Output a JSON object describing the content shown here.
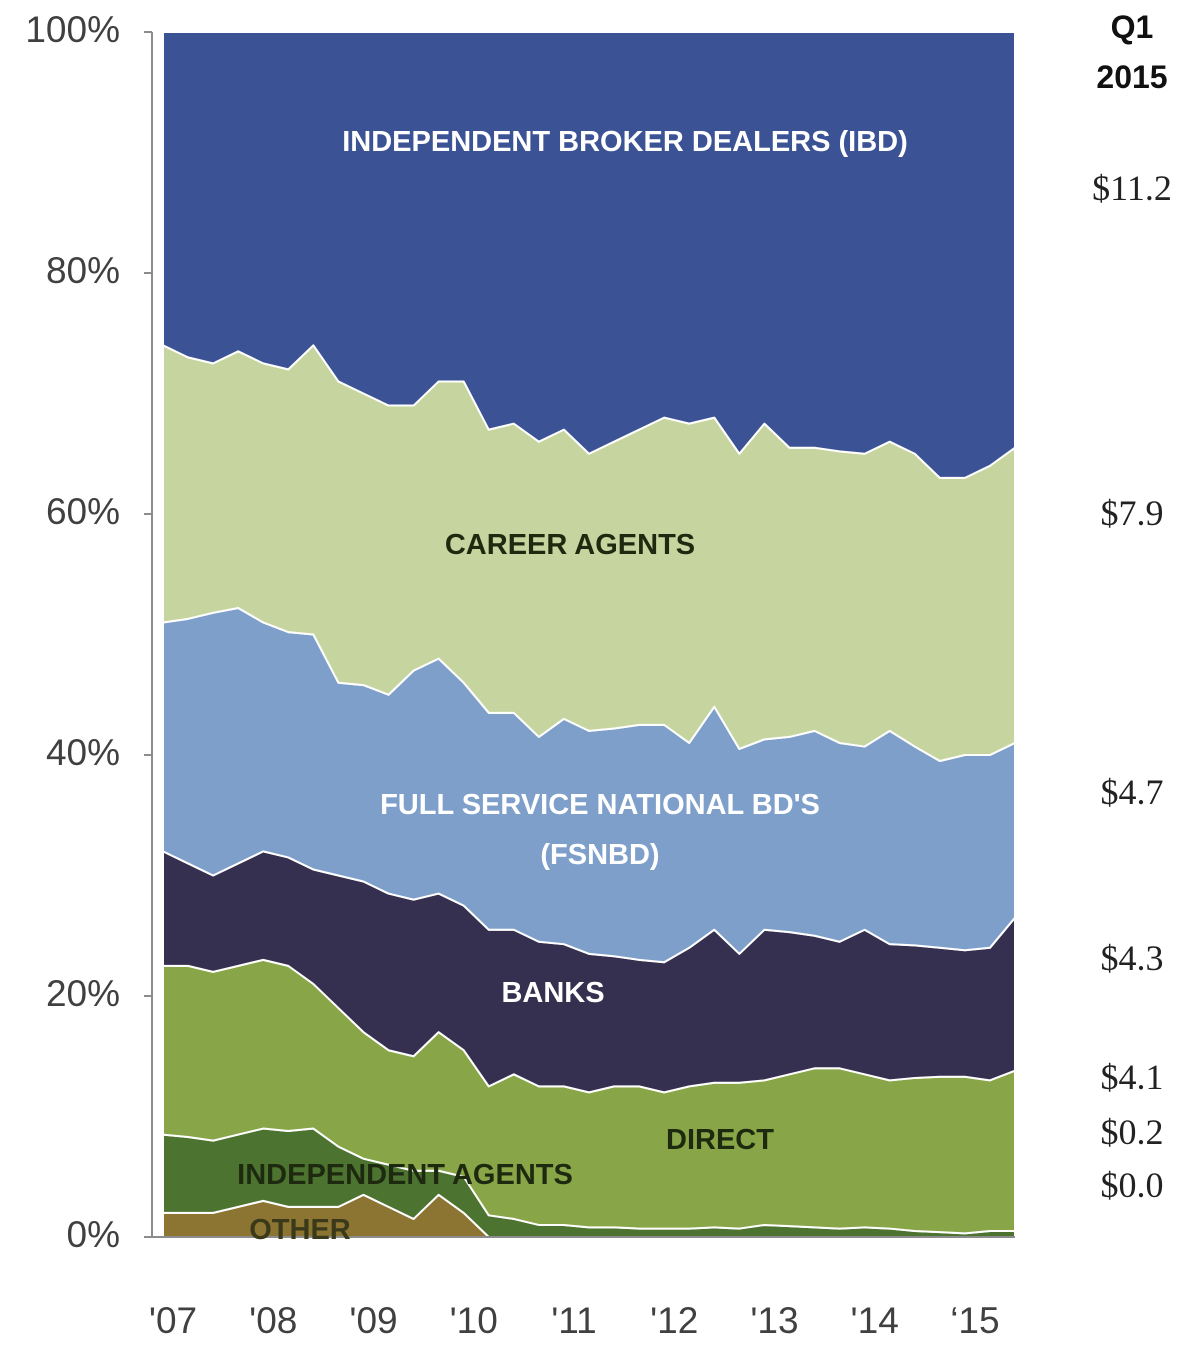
{
  "chart_data": {
    "type": "stacked_area",
    "x": [
      2006.9,
      2007.15,
      2007.4,
      2007.65,
      2007.9,
      2008.15,
      2008.4,
      2008.65,
      2008.9,
      2009.15,
      2009.4,
      2009.65,
      2009.9,
      2010.15,
      2010.4,
      2010.65,
      2010.9,
      2011.15,
      2011.4,
      2011.65,
      2011.9,
      2012.15,
      2012.4,
      2012.65,
      2012.9,
      2013.15,
      2013.4,
      2013.65,
      2013.9,
      2014.15,
      2014.4,
      2014.65,
      2014.9,
      2015.15,
      2015.4
    ],
    "xlim": [
      2006.9,
      2015.4
    ],
    "xticks": [
      {
        "value": 2007,
        "label": "'07"
      },
      {
        "value": 2008,
        "label": "'08"
      },
      {
        "value": 2009,
        "label": "'09"
      },
      {
        "value": 2010,
        "label": "'10"
      },
      {
        "value": 2011,
        "label": "'11"
      },
      {
        "value": 2012,
        "label": "'12"
      },
      {
        "value": 2013,
        "label": "'13"
      },
      {
        "value": 2014,
        "label": "'14"
      },
      {
        "value": 2015,
        "label": "‘15"
      }
    ],
    "ylim": [
      0,
      100
    ],
    "yticks": [
      {
        "value": 0,
        "label": "0%"
      },
      {
        "value": 20,
        "label": "20%"
      },
      {
        "value": 40,
        "label": "40%"
      },
      {
        "value": 60,
        "label": "60%"
      },
      {
        "value": 80,
        "label": "80%"
      },
      {
        "value": 100,
        "label": "100%"
      }
    ],
    "series": [
      {
        "name": "OTHER",
        "color": "#8c7432",
        "values": [
          2,
          2,
          2,
          2.5,
          3,
          2.5,
          2.5,
          2.5,
          3.5,
          2.5,
          1.5,
          3.5,
          2,
          0,
          0,
          0,
          0,
          0,
          0,
          0,
          0,
          0,
          0,
          0,
          0,
          0,
          0,
          0,
          0,
          0,
          0,
          0,
          0,
          0,
          0
        ]
      },
      {
        "name": "INDEPENDENT AGENTS",
        "color": "#4d7330",
        "values": [
          6.5,
          6.3,
          6,
          6,
          6,
          6.3,
          6.5,
          5,
          3,
          3.5,
          4,
          2,
          3,
          1.8,
          1.5,
          1,
          1,
          0.8,
          0.8,
          0.7,
          0.7,
          0.7,
          0.8,
          0.7,
          1,
          0.9,
          0.8,
          0.7,
          0.8,
          0.7,
          0.5,
          0.4,
          0.3,
          0.5,
          0.5
        ]
      },
      {
        "name": "DIRECT",
        "color": "#88a548",
        "values": [
          14,
          14.2,
          14,
          14,
          14,
          13.7,
          12,
          11.5,
          10.5,
          9.5,
          9.5,
          11.5,
          10.5,
          10.7,
          12,
          11.5,
          11.5,
          11.2,
          11.7,
          11.8,
          11.3,
          11.8,
          12,
          12.1,
          12,
          12.6,
          13.2,
          13.3,
          12.7,
          12.3,
          12.7,
          12.9,
          13,
          12.5,
          13.3
        ]
      },
      {
        "name": "BANKS",
        "color": "#35304f",
        "values": [
          9.5,
          8.5,
          8,
          8.5,
          9,
          9,
          9.5,
          11,
          12.5,
          13,
          13,
          11.5,
          12,
          13,
          12,
          12,
          11.8,
          11.5,
          10.8,
          10.5,
          10.8,
          11.5,
          12.7,
          10.7,
          12.5,
          11.8,
          11,
          10.5,
          12,
          11.3,
          11,
          10.7,
          10.5,
          11,
          12.7
        ]
      },
      {
        "name": "FULL SERVICE NATIONAL BD'S (FSNBD)",
        "color": "#7f9fcb",
        "values": [
          19,
          20.3,
          21.8,
          21.2,
          19,
          18.7,
          19.5,
          16,
          16.3,
          16.5,
          19,
          19.5,
          18.5,
          18,
          18,
          17,
          18.7,
          18.5,
          18.9,
          19.5,
          19.7,
          17,
          18.5,
          17,
          15.8,
          16.2,
          17,
          16.5,
          15.2,
          17.7,
          16.5,
          15.5,
          16.2,
          16,
          14.5
        ]
      },
      {
        "name": "CAREER AGENTS",
        "color": "#c6d5a0",
        "values": [
          23,
          21.7,
          20.7,
          21.3,
          21.5,
          21.8,
          24,
          25,
          24.2,
          24,
          22,
          23,
          25,
          23.5,
          24,
          24.5,
          24,
          23,
          23.8,
          24.5,
          25.5,
          26.5,
          24,
          24.5,
          26.2,
          24,
          23.5,
          24.2,
          24.3,
          24,
          24.3,
          23.5,
          23,
          24,
          24.5
        ]
      },
      {
        "name": "INDEPENDENT BROKER DEALERS (IBD)",
        "color": "#3b5294",
        "values": [
          26,
          27,
          27.5,
          26.5,
          27.5,
          28,
          26,
          29,
          30,
          31,
          31,
          29,
          29,
          33,
          32.5,
          34,
          33,
          35,
          34,
          33,
          32,
          32.5,
          32,
          35,
          32.5,
          34.5,
          34.5,
          34.8,
          35,
          34,
          35,
          37,
          37,
          36,
          34.5
        ]
      }
    ],
    "side_title": "Q1 2015",
    "side_values": [
      "$11.2",
      "$7.9",
      "$4.7",
      "$4.3",
      "$4.1",
      "$0.2",
      "$0.0"
    ]
  }
}
